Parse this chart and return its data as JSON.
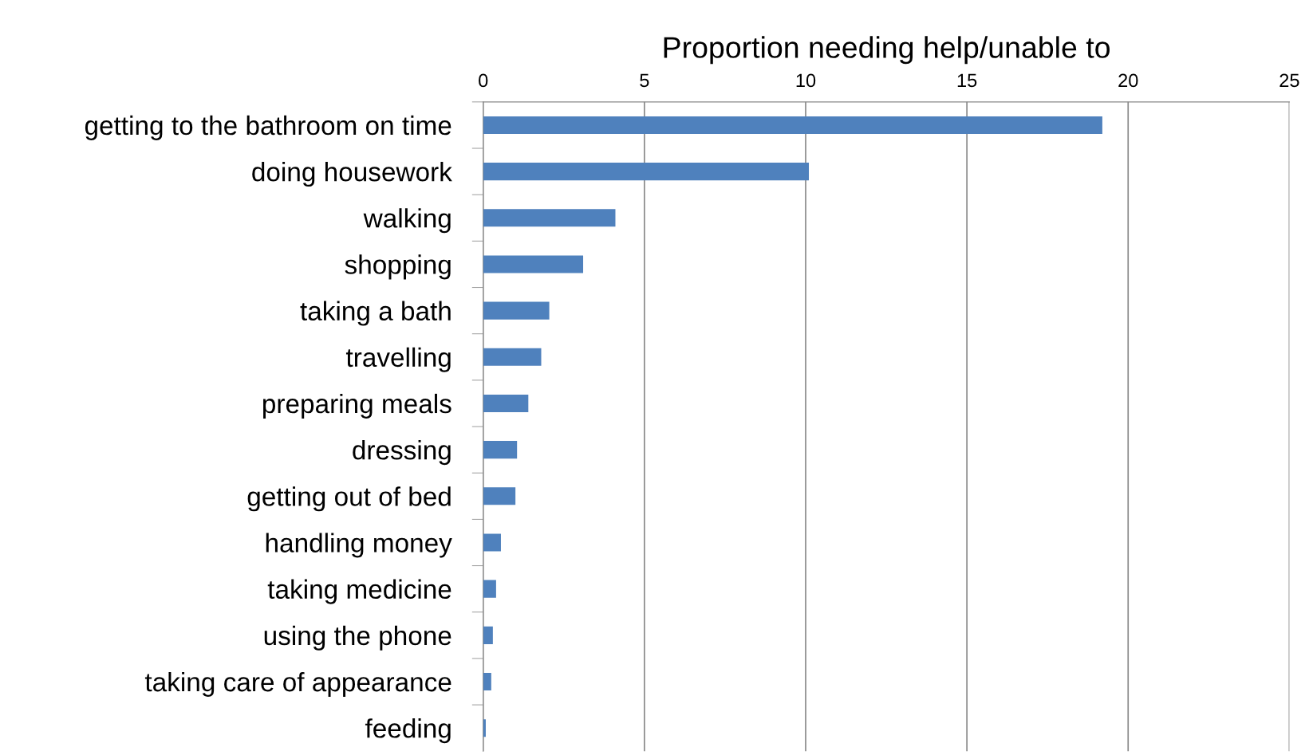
{
  "chart_data": {
    "type": "bar",
    "orientation": "horizontal",
    "xlabel": "Proportion needing help/unable to",
    "categories": [
      "getting to the bathroom on time",
      "doing housework",
      "walking",
      "shopping",
      "taking a bath",
      "travelling",
      "preparing meals",
      "dressing",
      "getting out of bed",
      "handling money",
      "taking medicine",
      "using the phone",
      "taking care of appearance",
      "feeding"
    ],
    "values": [
      19.2,
      10.1,
      4.1,
      3.1,
      2.05,
      1.8,
      1.4,
      1.05,
      1.0,
      0.55,
      0.4,
      0.3,
      0.25,
      0.08
    ],
    "color": "#4f81bd",
    "xlim": [
      0,
      25
    ],
    "xticks": [
      0,
      5,
      10,
      15,
      20,
      25
    ],
    "grid": "x"
  }
}
